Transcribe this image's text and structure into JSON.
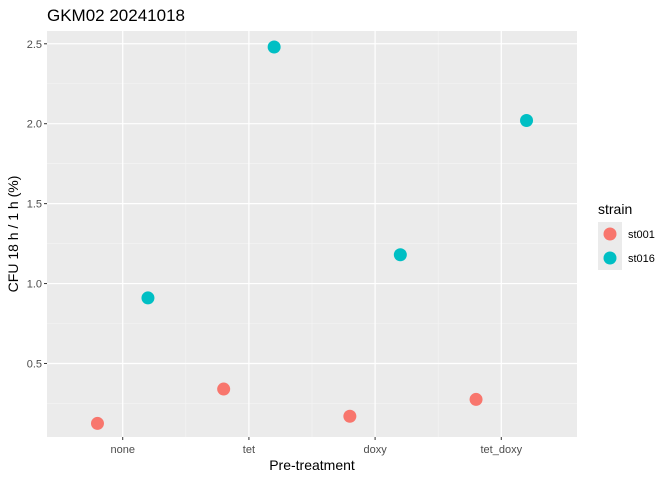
{
  "chart_data": {
    "type": "scatter",
    "title": "GKM02 20241018",
    "xlabel": "Pre-treatment",
    "ylabel": "CFU 18 h / 1 h (%)",
    "categories": [
      "none",
      "tet",
      "doxy",
      "tet_doxy"
    ],
    "yticks": [
      0.5,
      1.0,
      1.5,
      2.0,
      2.5
    ],
    "ytick_labels": [
      "0.5",
      "1.0",
      "1.5",
      "2.0",
      "2.5"
    ],
    "ylim": [
      0.04,
      2.58
    ],
    "grid": true,
    "legend": {
      "title": "strain",
      "position": "right"
    },
    "series": [
      {
        "name": "st001",
        "color": "#F8766D",
        "offset": -0.2,
        "values": [
          0.125,
          0.34,
          0.17,
          0.275
        ]
      },
      {
        "name": "st016",
        "color": "#00BFC4",
        "offset": 0.2,
        "values": [
          0.91,
          2.48,
          1.18,
          2.02
        ]
      }
    ]
  }
}
